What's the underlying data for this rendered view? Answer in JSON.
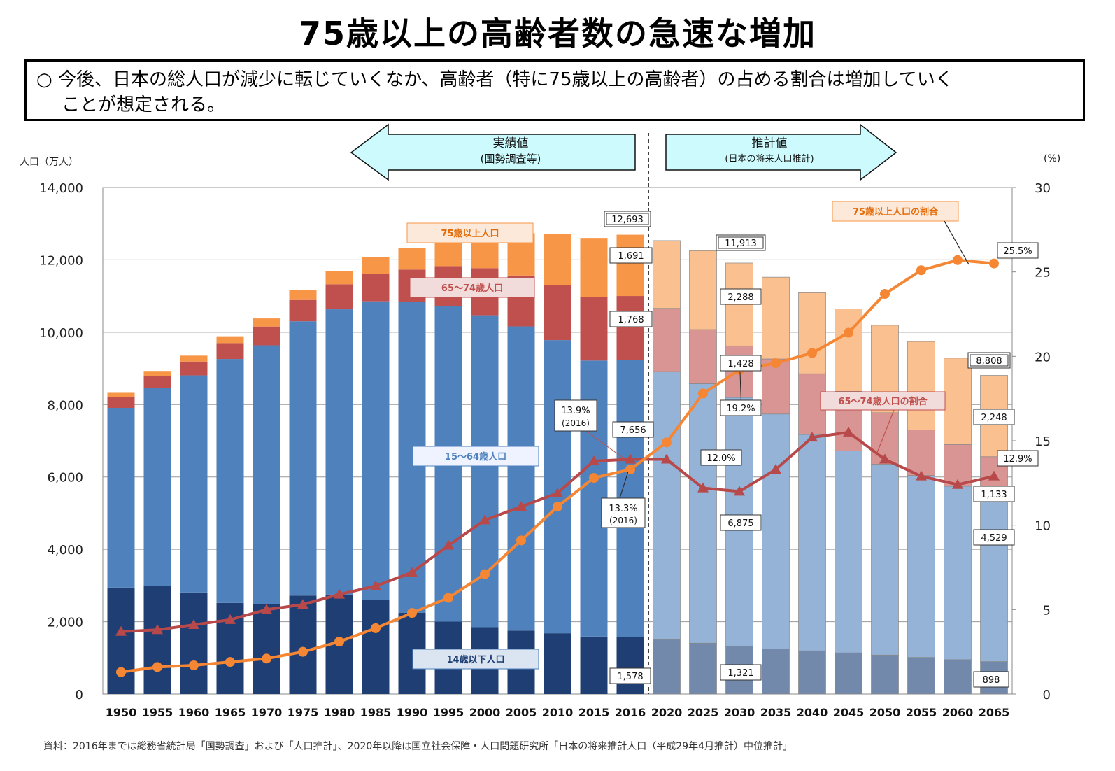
{
  "title": "75歳以上の高齢者数の急速な増加",
  "summary": {
    "line1": "○ 今後、日本の総人口が減少に転じていくなか、高齢者（特に75歳以上の高齢者）の占める割合は増加していく",
    "line2": "ことが想定される。"
  },
  "source": "資料：2016年までは総務省統計局「国勢調査」および「人口推計」、2020年以降は国立社会保障・人口問題研究所「日本の将来推計人口（平成29年4月推計）中位推計」",
  "periods": {
    "actual": {
      "label": "実績値",
      "sub": "(国勢調査等)"
    },
    "projected": {
      "label": "推計値",
      "sub": "(日本の将来人口推計)"
    }
  },
  "colors": {
    "u14": "#1f3f74",
    "p1564": "#4f81bd",
    "p6574": "#c0504d",
    "p75": "#f79646",
    "u14_proj": "#7389ab",
    "p1564_proj": "#95b3d7",
    "p6574_proj": "#d99594",
    "p75_proj": "#fac090",
    "line75": "#f58634",
    "line6574": "#b8494a",
    "arrow_fill": "#ccfafd"
  },
  "chart_data": {
    "type": "bar",
    "stacked": true,
    "categories": [
      "1950",
      "1955",
      "1960",
      "1965",
      "1970",
      "1975",
      "1980",
      "1985",
      "1990",
      "1995",
      "2000",
      "2005",
      "2010",
      "2015",
      "2016",
      "2020",
      "2025",
      "2030",
      "2035",
      "2040",
      "2045",
      "2050",
      "2055",
      "2060",
      "2065"
    ],
    "projection_start_index": 15,
    "y_left": {
      "label": "人口（万人）",
      "min": 0,
      "max": 14000,
      "ticks": [
        "0",
        "2,000",
        "4,000",
        "6,000",
        "8,000",
        "10,000",
        "12,000",
        "14,000"
      ]
    },
    "y_right": {
      "label": "(%)",
      "min": 0,
      "max": 30,
      "ticks": [
        "0",
        "5",
        "10",
        "15",
        "20",
        "25",
        "30"
      ]
    },
    "grid": true,
    "series": [
      {
        "name": "14歳以下人口",
        "kind": "bar",
        "values": [
          2943,
          2980,
          2807,
          2517,
          2482,
          2722,
          2751,
          2603,
          2249,
          2001,
          1847,
          1752,
          1680,
          1589,
          1578,
          1507,
          1407,
          1321,
          1246,
          1194,
          1138,
          1077,
          1012,
          951,
          898
        ]
      },
      {
        "name": "15〜64歳人口",
        "kind": "bar",
        "values": [
          4966,
          5473,
          6000,
          6744,
          7157,
          7581,
          7883,
          8251,
          8590,
          8717,
          8622,
          8409,
          8103,
          7629,
          7656,
          7406,
          7170,
          6875,
          6494,
          5978,
          5584,
          5275,
          5028,
          4793,
          4529
        ]
      },
      {
        "name": "65〜74歳人口",
        "kind": "bar",
        "values": [
          309,
          338,
          383,
          438,
          519,
          589,
          690,
          753,
          892,
          1109,
          1301,
          1407,
          1517,
          1755,
          1768,
          1747,
          1497,
          1428,
          1522,
          1681,
          1643,
          1424,
          1258,
          1154,
          1133
        ]
      },
      {
        "name": "75歳以上人口",
        "kind": "bar",
        "values": [
          107,
          139,
          163,
          189,
          224,
          284,
          366,
          471,
          597,
          717,
          900,
          1164,
          1419,
          1632,
          1691,
          1872,
          2180,
          2288,
          2260,
          2239,
          2277,
          2417,
          2446,
          2387,
          2248
        ]
      },
      {
        "name": "75歳以上人口の割合",
        "kind": "line",
        "axis": "right",
        "values": [
          1.3,
          1.6,
          1.7,
          1.9,
          2.1,
          2.5,
          3.1,
          3.9,
          4.8,
          5.7,
          7.1,
          9.1,
          11.1,
          12.8,
          13.3,
          14.9,
          17.8,
          19.2,
          19.6,
          20.2,
          21.4,
          23.7,
          25.1,
          25.7,
          25.5
        ]
      },
      {
        "name": "65〜74歳人口の割合",
        "kind": "line",
        "axis": "right",
        "values": [
          3.7,
          3.8,
          4.1,
          4.4,
          5.0,
          5.3,
          5.9,
          6.4,
          7.2,
          8.8,
          10.3,
          11.1,
          11.9,
          13.8,
          13.9,
          13.9,
          12.2,
          12.0,
          13.3,
          15.2,
          15.5,
          13.9,
          12.9,
          12.4,
          12.9
        ]
      }
    ],
    "totals": {
      "2016": "12,693",
      "2030": "11,913",
      "2065": "8,808"
    },
    "annotations": {
      "series_labels": {
        "p75": "75歳以上人口",
        "p6574": "65〜74歳人口",
        "p1564": "15〜64歳人口",
        "u14": "14歳以下人口",
        "ratio75": "75歳以上人口の割合",
        "ratio6574": "65〜74歳人口の割合"
      },
      "values_2016": {
        "p75": "1,691",
        "p6574": "1,768",
        "p1564": "7,656",
        "u14": "1,578"
      },
      "values_2030": {
        "p75": "2,288",
        "p6574": "1,428",
        "p1564": "6,875",
        "u14": "1,321"
      },
      "values_2065": {
        "p75": "2,248",
        "p6574": "1,133",
        "p1564": "4,529",
        "u14": "898"
      },
      "ratio_2016_6574": {
        "value": "13.9%",
        "year": "(2016)"
      },
      "ratio_2016_75": {
        "value": "13.3%",
        "year": "(2016)"
      },
      "ratio_2030_75": "19.2%",
      "ratio_2030_6574": "12.0%",
      "ratio_2065_75": "25.5%",
      "ratio_2065_6574": "12.9%"
    }
  }
}
